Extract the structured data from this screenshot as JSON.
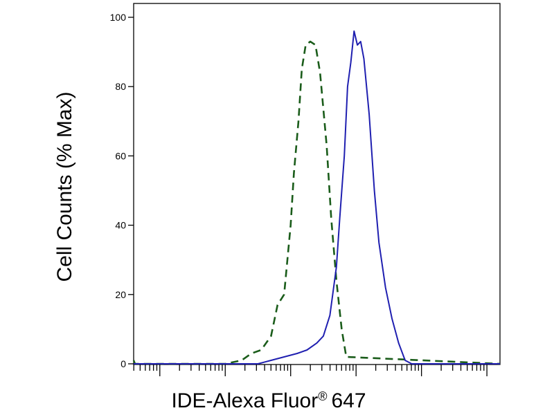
{
  "chart_data": {
    "type": "line",
    "title": "",
    "ylabel": "Cell Counts (% Max)",
    "xlabel_main": "IDE-Alexa Fluor",
    "xlabel_reg": "®",
    "xlabel_tail": "647",
    "x_scale": "log",
    "xlim": [
      0.6,
      6.2
    ],
    "ylim": [
      0,
      100
    ],
    "y_ticks": [
      0,
      20,
      40,
      60,
      80,
      100
    ],
    "x_major_ticks": [
      1,
      2,
      3,
      4,
      5,
      6
    ],
    "grid": false,
    "legend": "none",
    "series": [
      {
        "color": "#1a5c1a",
        "dash": "dashed",
        "x": [
          0.6,
          0.62,
          0.7,
          0.9,
          1.5,
          2.0,
          2.25,
          2.4,
          2.55,
          2.7,
          2.8,
          2.9,
          3.0,
          3.05,
          3.12,
          3.17,
          3.23,
          3.3,
          3.38,
          3.45,
          3.55,
          3.62,
          3.7,
          3.78,
          3.85,
          6.2
        ],
        "y": [
          1,
          0,
          0,
          0,
          0,
          0,
          1,
          3,
          4,
          8,
          17,
          20,
          40,
          55,
          70,
          85,
          92,
          93,
          92,
          84,
          63,
          42,
          24,
          10,
          2,
          0
        ]
      },
      {
        "color": "#1f1fb0",
        "dash": "solid",
        "x": [
          0.6,
          1.5,
          2.2,
          2.5,
          2.7,
          2.9,
          3.1,
          3.25,
          3.4,
          3.5,
          3.6,
          3.7,
          3.75,
          3.82,
          3.87,
          3.92,
          3.97,
          4.02,
          4.07,
          4.12,
          4.2,
          4.28,
          4.35,
          4.45,
          4.55,
          4.65,
          4.75,
          4.85,
          5.0,
          6.2
        ],
        "y": [
          0,
          0,
          0,
          0,
          1,
          2,
          3,
          4,
          6,
          8,
          14,
          28,
          42,
          60,
          80,
          87,
          96,
          92,
          93,
          88,
          72,
          50,
          35,
          22,
          13,
          6,
          1,
          0,
          0,
          0
        ]
      }
    ]
  }
}
